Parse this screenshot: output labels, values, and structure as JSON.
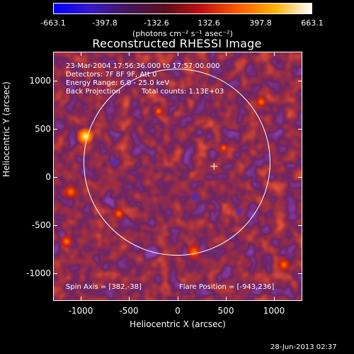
{
  "colorbar": {
    "ticks": [
      "-663.1",
      "-397.8",
      "-132.6",
      "132.6",
      "397.8",
      "663.1"
    ],
    "units": "(photons cm⁻² s⁻¹ asec⁻²)",
    "colors": [
      "#0000ff",
      "#3a18c8",
      "#45165a",
      "#5a0f1c",
      "#c01010",
      "#ff5a00",
      "#ffb000",
      "#ffffff"
    ]
  },
  "title": "Reconstructed RHESSI Image",
  "info": {
    "time_range": "23-Mar-2004 17:56:36.000 to 17:57:00.000",
    "detectors": "Detectors: 7F 8F 9F, Att 0",
    "energy_range": "Energy Range: 6.0 - 25.0 keV",
    "method": "Back Projection",
    "total_counts": "Total counts: 1.13E+03",
    "spin_axis": "Spin Axis = [382,-38]",
    "flare_position": "Flare Position = [-943,236]"
  },
  "axes": {
    "x_label": "Heliocentric X (arcsec)",
    "y_label": "Heliocentric Y (arcsec)",
    "x_ticks": [
      "-1000",
      "-500",
      "0",
      "500",
      "1000"
    ],
    "y_ticks": [
      "1000",
      "500",
      "0",
      "-500",
      "-1000"
    ],
    "x_range": [
      -1270,
      1300
    ],
    "y_range": [
      -1270,
      1000
    ]
  },
  "overlay": {
    "solar_limb_radius_arcsec": 960,
    "spin_axis_marker": [
      382,
      -38
    ]
  },
  "image_features": {
    "brightest_source_arcsec": [
      -943,
      236
    ]
  },
  "timestamp": "28-Jun-2013 02:37"
}
